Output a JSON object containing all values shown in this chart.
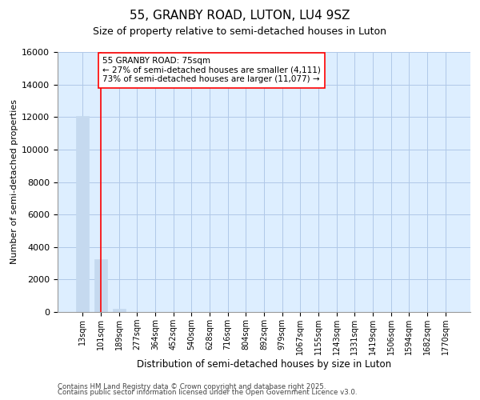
{
  "title1": "55, GRANBY ROAD, LUTON, LU4 9SZ",
  "title2": "Size of property relative to semi-detached houses in Luton",
  "xlabel": "Distribution of semi-detached houses by size in Luton",
  "ylabel": "Number of semi-detached properties",
  "categories": [
    "13sqm",
    "101sqm",
    "189sqm",
    "277sqm",
    "364sqm",
    "452sqm",
    "540sqm",
    "628sqm",
    "716sqm",
    "804sqm",
    "892sqm",
    "979sqm",
    "1067sqm",
    "1155sqm",
    "1243sqm",
    "1331sqm",
    "1419sqm",
    "1506sqm",
    "1594sqm",
    "1682sqm",
    "1770sqm"
  ],
  "values": [
    12050,
    3250,
    200,
    0,
    0,
    0,
    0,
    0,
    0,
    0,
    0,
    0,
    0,
    0,
    0,
    0,
    0,
    0,
    0,
    0,
    0
  ],
  "bar_color": "#c5d9ef",
  "grid_color": "#b0c8e8",
  "background_color": "#ddeeff",
  "red_line_x": 1,
  "annotation_title": "55 GRANBY ROAD: 75sqm",
  "annotation_line1": "← 27% of semi-detached houses are smaller (4,111)",
  "annotation_line2": "73% of semi-detached houses are larger (11,077) →",
  "footer1": "Contains HM Land Registry data © Crown copyright and database right 2025.",
  "footer2": "Contains public sector information licensed under the Open Government Licence v3.0.",
  "ylim": [
    0,
    16000
  ],
  "yticks": [
    0,
    2000,
    4000,
    6000,
    8000,
    10000,
    12000,
    14000,
    16000
  ]
}
